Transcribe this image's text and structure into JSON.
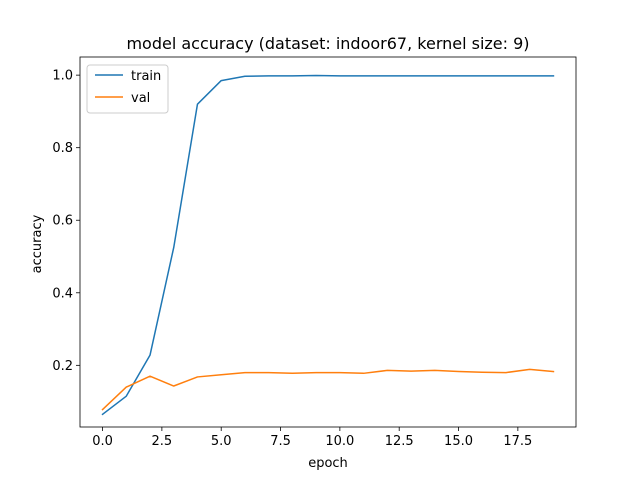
{
  "chart_data": {
    "type": "line",
    "title": "model accuracy (dataset: indoor67, kernel size: 9)",
    "xlabel": "epoch",
    "ylabel": "accuracy",
    "xlim": [
      -0.95,
      19.95
    ],
    "ylim": [
      0.03,
      1.05
    ],
    "xticks": [
      0.0,
      2.5,
      5.0,
      7.5,
      10.0,
      12.5,
      15.0,
      17.5
    ],
    "xtick_labels": [
      "0.0",
      "2.5",
      "5.0",
      "7.5",
      "10.0",
      "12.5",
      "15.0",
      "17.5"
    ],
    "yticks": [
      0.2,
      0.4,
      0.6,
      0.8,
      1.0
    ],
    "ytick_labels": [
      "0.2",
      "0.4",
      "0.6",
      "0.8",
      "1.0"
    ],
    "grid": false,
    "legend": "upper-left",
    "x": [
      0,
      1,
      2,
      3,
      4,
      5,
      6,
      7,
      8,
      9,
      10,
      11,
      12,
      13,
      14,
      15,
      16,
      17,
      18,
      19
    ],
    "series": [
      {
        "name": "train",
        "color": "#1f77b4",
        "values": [
          0.065,
          0.115,
          0.228,
          0.525,
          0.92,
          0.985,
          0.997,
          0.998,
          0.998,
          0.999,
          0.998,
          0.998,
          0.998,
          0.998,
          0.998,
          0.998,
          0.998,
          0.998,
          0.998,
          0.998
        ]
      },
      {
        "name": "val",
        "color": "#ff7f0e",
        "values": [
          0.078,
          0.14,
          0.17,
          0.143,
          0.168,
          0.174,
          0.18,
          0.18,
          0.178,
          0.18,
          0.18,
          0.178,
          0.186,
          0.184,
          0.186,
          0.183,
          0.181,
          0.18,
          0.189,
          0.183
        ]
      }
    ]
  }
}
